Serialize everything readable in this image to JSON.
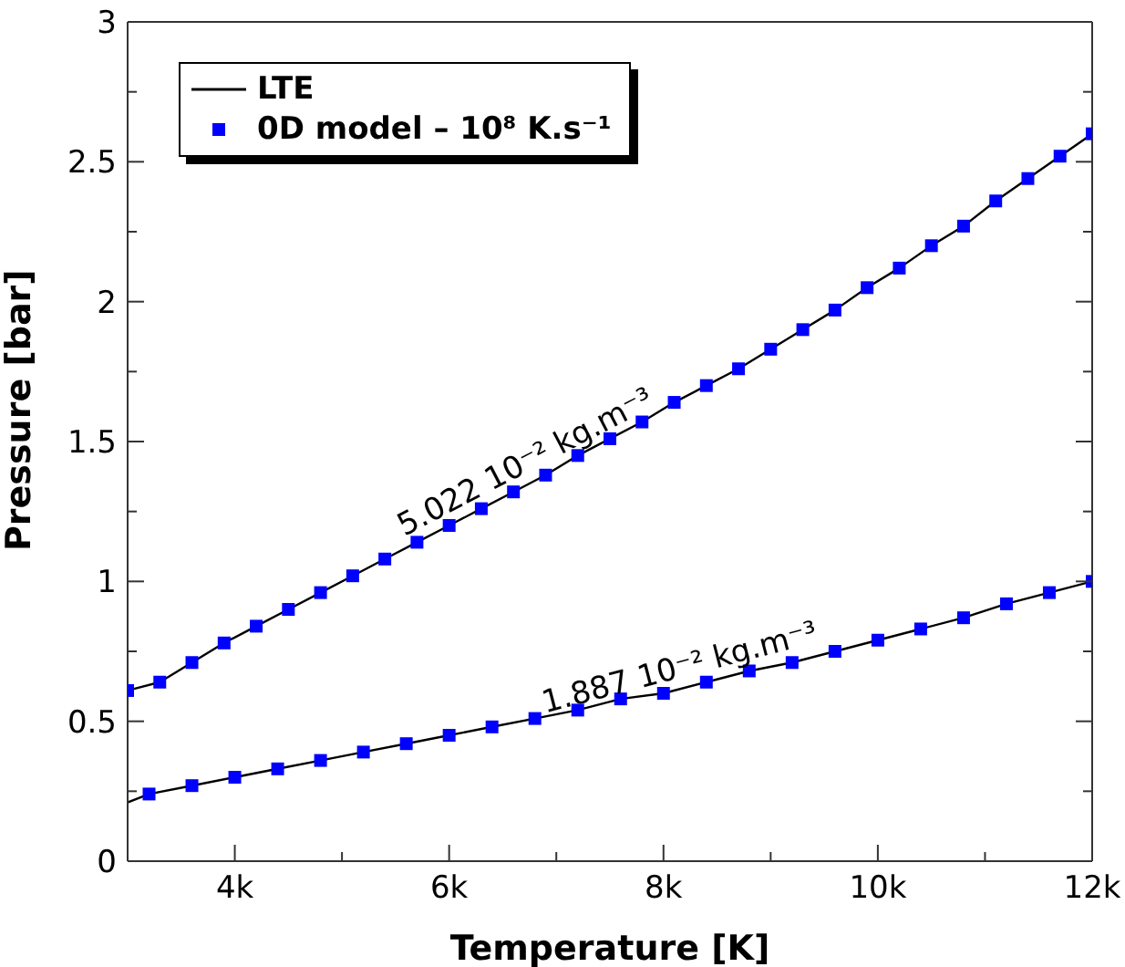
{
  "chart_data": {
    "type": "line",
    "xlabel": "Temperature [K]",
    "ylabel": "Pressure [bar]",
    "xlim": [
      3000,
      12000
    ],
    "xticks": [
      {
        "value": 3000,
        "label": null
      },
      {
        "value": 4000,
        "label": "4k"
      },
      {
        "value": 5000,
        "label": null
      },
      {
        "value": 6000,
        "label": "6k"
      },
      {
        "value": 7000,
        "label": null
      },
      {
        "value": 8000,
        "label": "8k"
      },
      {
        "value": 9000,
        "label": null
      },
      {
        "value": 10000,
        "label": "10k"
      },
      {
        "value": 11000,
        "label": null
      },
      {
        "value": 12000,
        "label": "12k"
      }
    ],
    "ylim": [
      0,
      3
    ],
    "yticks": [
      0,
      {
        "value": 0.25,
        "label": null
      },
      0.5,
      {
        "value": 0.75,
        "label": null
      },
      1,
      {
        "value": 1.25,
        "label": null
      },
      1.5,
      {
        "value": 1.75,
        "label": null
      },
      2,
      {
        "value": 2.25,
        "label": null
      },
      2.5,
      {
        "value": 2.75,
        "label": null
      },
      3
    ],
    "legend": "top left",
    "grid": false,
    "series": [
      {
        "name": "LTE",
        "color": "#000000",
        "x": [
          3000,
          3300,
          3600,
          3900,
          4200,
          4500,
          4800,
          5100,
          5400,
          5700,
          6000,
          6300,
          6600,
          6900,
          7200,
          7500,
          7800,
          8100,
          8400,
          8700,
          9000,
          9300,
          9600,
          9900,
          10200,
          10500,
          10800,
          11100,
          11400,
          11700,
          12000
        ],
        "values": [
          0.61,
          0.64,
          0.71,
          0.78,
          0.84,
          0.9,
          0.96,
          1.02,
          1.08,
          1.14,
          1.2,
          1.26,
          1.32,
          1.38,
          1.45,
          1.51,
          1.57,
          1.64,
          1.7,
          1.76,
          1.83,
          1.9,
          1.97,
          2.05,
          2.12,
          2.2,
          2.27,
          2.36,
          2.44,
          2.52,
          2.6
        ]
      },
      {
        "color": "#000000",
        "x": [
          3000,
          3200,
          3600,
          4000,
          4400,
          4800,
          5200,
          5600,
          6000,
          6400,
          6800,
          7200,
          7600,
          8000,
          8400,
          8800,
          9200,
          9600,
          10000,
          10400,
          10800,
          11200,
          11600,
          12000
        ],
        "values": [
          0.21,
          0.24,
          0.27,
          0.3,
          0.33,
          0.36,
          0.39,
          0.42,
          0.45,
          0.48,
          0.51,
          0.54,
          0.58,
          0.6,
          0.64,
          0.68,
          0.71,
          0.75,
          0.79,
          0.83,
          0.87,
          0.92,
          0.96,
          1.0
        ]
      },
      {
        "name": "0D model – 10⁸ K.s⁻¹",
        "type": "scatter",
        "marker": "square",
        "color": "#0000ff",
        "x": [
          3000,
          3300,
          3600,
          3900,
          4200,
          4500,
          4800,
          5100,
          5400,
          5700,
          6000,
          6300,
          6600,
          6900,
          7200,
          7500,
          7800,
          8100,
          8400,
          8700,
          9000,
          9300,
          9600,
          9900,
          10200,
          10500,
          10800,
          11100,
          11400,
          11700,
          12000
        ],
        "values": [
          0.61,
          0.64,
          0.71,
          0.78,
          0.84,
          0.9,
          0.96,
          1.02,
          1.08,
          1.14,
          1.2,
          1.26,
          1.32,
          1.38,
          1.45,
          1.51,
          1.57,
          1.64,
          1.7,
          1.76,
          1.83,
          1.9,
          1.97,
          2.05,
          2.12,
          2.2,
          2.27,
          2.36,
          2.44,
          2.52,
          2.6
        ]
      },
      {
        "type": "scatter",
        "marker": "square",
        "color": "#0000ff",
        "x": [
          3200,
          3600,
          4000,
          4400,
          4800,
          5200,
          5600,
          6000,
          6400,
          6800,
          7200,
          7600,
          8000,
          8400,
          8800,
          9200,
          9600,
          10000,
          10400,
          10800,
          11200,
          11600,
          12000
        ],
        "values": [
          0.24,
          0.27,
          0.3,
          0.33,
          0.36,
          0.39,
          0.42,
          0.45,
          0.48,
          0.51,
          0.54,
          0.58,
          0.6,
          0.64,
          0.68,
          0.71,
          0.75,
          0.79,
          0.83,
          0.87,
          0.92,
          0.96,
          1.0
        ]
      }
    ],
    "annotations": [
      {
        "text": "5.022 10⁻² kg.m⁻³",
        "x": 6800,
        "y": 1.36
      },
      {
        "text": "1.887 10⁻² kg.m⁻³",
        "x": 8200,
        "y": 0.62
      }
    ]
  }
}
